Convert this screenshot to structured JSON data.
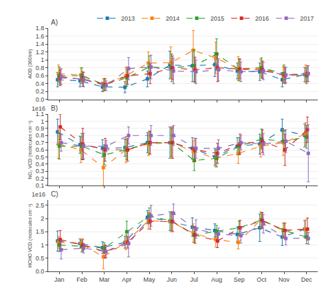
{
  "chart_data": [
    {
      "type": "line",
      "categories": [
        "Jan",
        "Feb",
        "Mar",
        "Apr",
        "May",
        "Jun",
        "Jul",
        "Aug",
        "Sep",
        "Oct",
        "Nov",
        "Dec"
      ],
      "ylabel": "AOD (360nm)",
      "annotations": [
        "A)"
      ],
      "ylim": [
        0,
        1.8
      ],
      "yticks": [
        {
          "value": 0,
          "label": "0.0"
        },
        0.2,
        0.4,
        0.6,
        0.8,
        1,
        1.2,
        1.4,
        1.6,
        1.8
      ],
      "grid": true,
      "legend": "upper right",
      "tick_labels": "y",
      "marker": "square",
      "line_style": "dashed",
      "series": [
        {
          "name": "2013",
          "color": "#1f77b4",
          "values": [
            0.5,
            0.47,
            0.32,
            0.31,
            0.52,
            0.87,
            0.85,
            0.88,
            0.72,
            0.7,
            0.5,
            0.63
          ],
          "errors": [
            0.18,
            0.15,
            0.12,
            0.14,
            0.2,
            0.35,
            0.4,
            0.3,
            0.2,
            0.22,
            0.18,
            0.18
          ]
        },
        {
          "name": "2014",
          "color": "#ff7f0e",
          "values": [
            0.65,
            0.62,
            0.38,
            0.6,
            0.92,
            0.93,
            1.24,
            1.05,
            0.78,
            0.8,
            0.62,
            0.65
          ],
          "errors": [
            0.22,
            0.18,
            0.15,
            0.22,
            0.28,
            0.4,
            0.5,
            0.4,
            0.3,
            0.22,
            0.22,
            0.22
          ]
        },
        {
          "name": "2015",
          "color": "#2ca02c",
          "values": [
            0.6,
            0.6,
            0.37,
            0.55,
            0.82,
            0.8,
            0.85,
            1.15,
            0.75,
            0.8,
            0.65,
            0.6
          ],
          "errors": [
            0.22,
            0.2,
            0.15,
            0.22,
            0.28,
            0.35,
            0.4,
            0.38,
            0.28,
            0.25,
            0.22,
            0.2
          ]
        },
        {
          "name": "2016",
          "color": "#d62728",
          "values": [
            0.55,
            0.52,
            0.38,
            0.6,
            0.65,
            0.8,
            0.75,
            0.8,
            0.77,
            0.75,
            0.6,
            0.65
          ],
          "errors": [
            0.2,
            0.18,
            0.15,
            0.22,
            0.25,
            0.3,
            0.32,
            0.35,
            0.25,
            0.22,
            0.2,
            0.2
          ]
        },
        {
          "name": "2017",
          "color": "#9467bd",
          "values": [
            0.58,
            0.5,
            0.35,
            0.78,
            0.82,
            0.72,
            0.7,
            0.75,
            0.7,
            0.72,
            0.62,
            0.65
          ],
          "errors": [
            0.2,
            0.18,
            0.12,
            0.28,
            0.3,
            0.32,
            0.3,
            0.28,
            0.25,
            0.22,
            0.2,
            0.2
          ]
        }
      ]
    },
    {
      "type": "line",
      "categories": [
        "Jan",
        "Feb",
        "Mar",
        "Apr",
        "May",
        "Jun",
        "Jul",
        "Aug",
        "Sep",
        "Oct",
        "Nov",
        "Dec"
      ],
      "ylabel": "NO₂ VCD (molecules cm⁻²)",
      "annotations": [
        "B)",
        "1e16"
      ],
      "ylim": [
        0.1,
        1.1
      ],
      "yticks": [
        0.1,
        0.2,
        0.3,
        0.4,
        0.5,
        0.6,
        0.7,
        0.8,
        0.9,
        1,
        1.1
      ],
      "grid": true,
      "tick_labels": "y",
      "marker": "square",
      "line_style": "dashed",
      "series": [
        {
          "name": "2013",
          "color": "#1f77b4",
          "values": [
            0.85,
            0.67,
            0.62,
            0.63,
            0.7,
            0.7,
            0.62,
            0.5,
            0.65,
            0.68,
            0.88,
            0.8
          ],
          "errors": [
            0.18,
            0.12,
            0.12,
            0.12,
            0.14,
            0.22,
            0.15,
            0.12,
            0.12,
            0.14,
            0.15,
            0.16
          ]
        },
        {
          "name": "2014",
          "color": "#ff7f0e",
          "values": [
            0.68,
            0.6,
            0.35,
            0.6,
            0.68,
            0.7,
            0.58,
            0.48,
            0.55,
            0.65,
            0.7,
            0.82
          ],
          "errors": [
            0.2,
            0.18,
            0.25,
            0.18,
            0.16,
            0.22,
            0.15,
            0.12,
            0.14,
            0.15,
            0.18,
            0.16
          ]
        },
        {
          "name": "2015",
          "color": "#2ca02c",
          "values": [
            0.65,
            0.65,
            0.53,
            0.6,
            0.7,
            0.7,
            0.45,
            0.48,
            0.65,
            0.75,
            0.72,
            0.78
          ],
          "errors": [
            0.18,
            0.18,
            0.14,
            0.14,
            0.16,
            0.2,
            0.14,
            0.12,
            0.12,
            0.14,
            0.14,
            0.16
          ]
        },
        {
          "name": "2016",
          "color": "#d62728",
          "values": [
            0.92,
            0.68,
            0.6,
            0.6,
            0.7,
            0.7,
            0.6,
            0.55,
            0.68,
            0.72,
            0.6,
            0.88
          ],
          "errors": [
            0.18,
            0.22,
            0.16,
            0.16,
            0.16,
            0.22,
            0.16,
            0.14,
            0.14,
            0.16,
            0.22,
            0.18
          ]
        },
        {
          "name": "2017",
          "color": "#9467bd",
          "values": [
            0.7,
            0.65,
            0.65,
            0.8,
            0.8,
            0.8,
            0.62,
            0.62,
            0.7,
            0.68,
            0.72,
            0.55
          ],
          "errors": [
            0.12,
            0.18,
            0.08,
            0.12,
            0.14,
            0.14,
            0.14,
            0.12,
            0.1,
            0.15,
            0.16,
            0.4
          ]
        }
      ]
    },
    {
      "type": "line",
      "categories": [
        "Jan",
        "Feb",
        "Mar",
        "Apr",
        "May",
        "Jun",
        "Jul",
        "Aug",
        "Sep",
        "Oct",
        "Nov",
        "Dec"
      ],
      "ylabel": "HCHO VCD (molecules cm⁻²)",
      "annotations": [
        "C)",
        "1e16"
      ],
      "ylim": [
        0,
        2.7
      ],
      "yticks": [
        {
          "value": 0,
          "label": "0.0"
        },
        0.5,
        1,
        1.5,
        2,
        2.5
      ],
      "grid": true,
      "marker": "square",
      "line_style": "dashed",
      "series": [
        {
          "name": "2013",
          "color": "#1f77b4",
          "values": [
            1.15,
            1.05,
            0.9,
            1.1,
            2.05,
            1.9,
            1.68,
            1.55,
            1.4,
            1.65,
            1.3,
            1.6
          ],
          "errors": [
            0.38,
            0.18,
            0.22,
            0.22,
            0.25,
            0.35,
            0.35,
            0.25,
            0.28,
            0.52,
            0.32,
            0.32
          ]
        },
        {
          "name": "2014",
          "color": "#ff7f0e",
          "values": [
            1.1,
            1.05,
            0.55,
            1.1,
            1.92,
            1.88,
            1.45,
            1.2,
            1.1,
            1.95,
            1.55,
            1.6
          ],
          "errors": [
            0.22,
            0.18,
            0.45,
            0.28,
            0.32,
            0.38,
            0.35,
            0.28,
            0.25,
            0.3,
            0.28,
            0.35
          ]
        },
        {
          "name": "2015",
          "color": "#2ca02c",
          "values": [
            1.0,
            0.95,
            0.88,
            1.5,
            2.1,
            1.9,
            1.38,
            1.52,
            1.65,
            1.95,
            1.55,
            1.3
          ],
          "errors": [
            0.25,
            0.22,
            0.2,
            0.4,
            0.3,
            0.35,
            0.28,
            0.22,
            0.25,
            0.28,
            0.28,
            0.25
          ]
        },
        {
          "name": "2016",
          "color": "#d62728",
          "values": [
            1.2,
            1.0,
            0.75,
            1.1,
            1.9,
            1.88,
            1.38,
            1.15,
            1.65,
            1.92,
            1.55,
            1.6
          ],
          "errors": [
            0.35,
            0.22,
            0.25,
            0.22,
            0.3,
            0.38,
            0.32,
            0.25,
            0.28,
            0.3,
            0.28,
            0.42
          ]
        },
        {
          "name": "2017",
          "color": "#9467bd",
          "values": [
            0.82,
            0.88,
            0.75,
            1.05,
            2.1,
            2.2,
            1.6,
            1.42,
            1.35,
            1.8,
            1.25,
            1.25
          ],
          "errors": [
            0.35,
            0.18,
            0.22,
            0.5,
            0.4,
            0.35,
            0.35,
            0.22,
            0.28,
            0.35,
            0.25,
            0.22
          ]
        }
      ]
    }
  ]
}
